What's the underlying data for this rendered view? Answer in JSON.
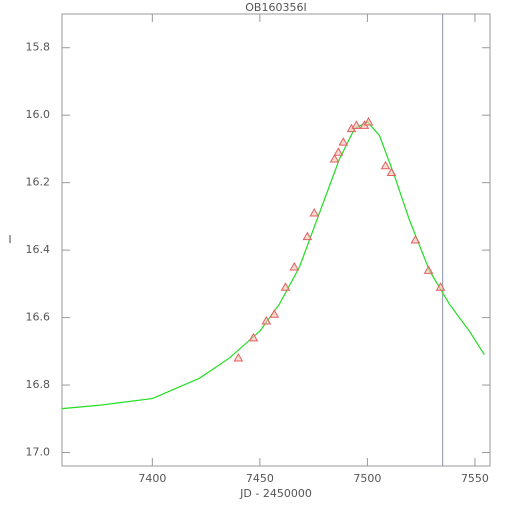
{
  "chart_data": {
    "type": "scatter",
    "title": "OB160356I",
    "x_label": "JD - 2450000",
    "y_label": "I",
    "xlim": [
      7358,
      7557
    ],
    "ylim": [
      17.04,
      15.7
    ],
    "xticks": [
      7400,
      7450,
      7500,
      7550
    ],
    "yticks": [
      15.8,
      {
        "value": 16,
        "label": "16.0"
      },
      16.2,
      16.4,
      16.6,
      16.8,
      {
        "value": 17,
        "label": "17.0"
      }
    ],
    "vline": 7535,
    "vline_color": "#8a8fa8",
    "series": [
      {
        "color": "#e06060",
        "x": [
          7440.0,
          7447.0,
          7453.0,
          7456.7,
          7461.9,
          7466.0,
          7472.1,
          7475.3,
          7484.7,
          7486.5,
          7488.8,
          7492.6,
          7494.9,
          7498.6,
          7500.5,
          7508.4,
          7511.2,
          7522.3,
          7528.4,
          7534.0
        ],
        "values": [
          16.72,
          16.66,
          16.61,
          16.59,
          16.51,
          16.45,
          16.36,
          16.29,
          16.13,
          16.11,
          16.08,
          16.04,
          16.03,
          16.03,
          16.02,
          16.15,
          16.17,
          16.37,
          16.46,
          16.51
        ]
      },
      {
        "color": "#22dd22",
        "type": "line",
        "x": [
          7358,
          7375.3,
          7400,
          7421.9,
          7435.8,
          7450,
          7459.1,
          7468.4,
          7477.7,
          7487,
          7494,
          7500,
          7505.6,
          7512.6,
          7519.5,
          7528.8,
          7538.1,
          7547.4,
          7554.4
        ],
        "values": [
          16.87,
          16.86,
          16.84,
          16.78,
          16.72,
          16.64,
          16.56,
          16.45,
          16.29,
          16.13,
          16.04,
          16.02,
          16.06,
          16.18,
          16.31,
          16.46,
          16.56,
          16.64,
          16.71
        ]
      }
    ]
  }
}
